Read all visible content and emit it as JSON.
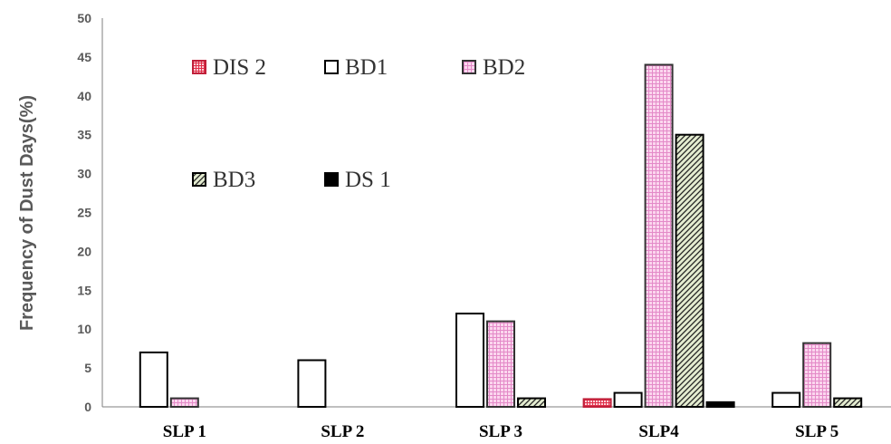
{
  "chart_data": {
    "type": "bar",
    "ylabel": "Frequency of Dust Days(%)",
    "ylim": [
      0,
      50
    ],
    "yticks": [
      0,
      5,
      10,
      15,
      20,
      25,
      30,
      35,
      40,
      45,
      50
    ],
    "categories": [
      "SLP 1",
      "SLP 2",
      "SLP 3",
      "SLP4",
      "SLP 5"
    ],
    "series": [
      {
        "name": "DIS 2",
        "values": [
          0,
          0,
          0,
          1,
          0
        ],
        "color": "#e0304a",
        "pattern": "red-grid"
      },
      {
        "name": "BD1",
        "values": [
          7,
          6,
          12,
          1.8,
          1.8
        ],
        "color": "#ffffff",
        "pattern": "outline"
      },
      {
        "name": "BD2",
        "values": [
          1.1,
          0,
          11,
          44,
          8.2
        ],
        "color": "#f4a6d8",
        "pattern": "pink-grid"
      },
      {
        "name": "BD3",
        "values": [
          0,
          0,
          1.1,
          35,
          1.1
        ],
        "color": "#c8d6a0",
        "pattern": "diagonal-hatch"
      },
      {
        "name": "DS 1",
        "values": [
          0,
          0,
          0,
          0.6,
          0
        ],
        "color": "#000000",
        "pattern": "solid"
      }
    ],
    "legend": "top-left, inside plot, two rows",
    "grid": false
  }
}
